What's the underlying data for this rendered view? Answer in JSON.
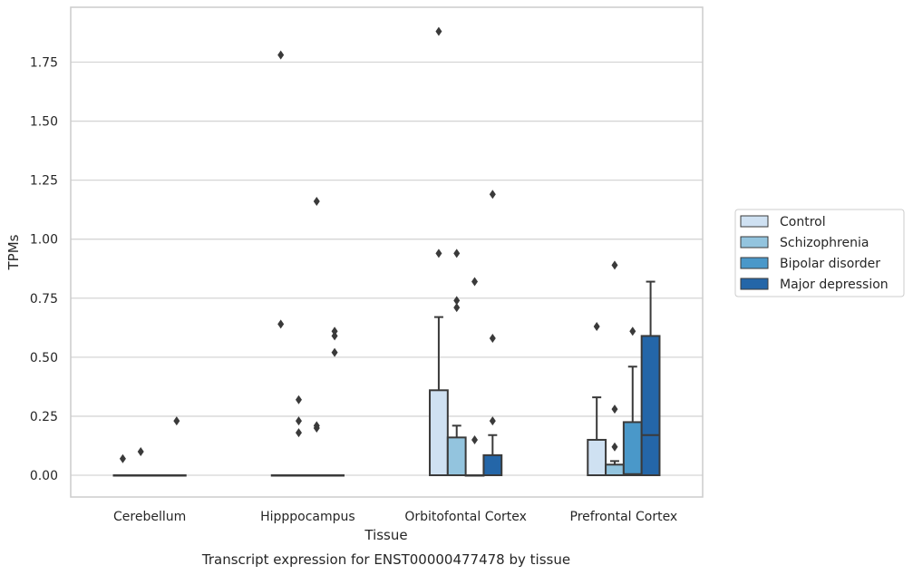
{
  "chart_data": {
    "type": "box",
    "title": "",
    "caption": "Transcript expression for ENST00000477478 by tissue",
    "xlabel": "Tissue",
    "ylabel": "TPMs",
    "ylim": [
      -0.09,
      1.97
    ],
    "yticks": [
      0,
      0.25,
      0.5,
      0.75,
      1.0,
      1.25,
      1.5,
      1.75
    ],
    "ytick_labels": [
      "0.00",
      "0.25",
      "0.50",
      "0.75",
      "1.00",
      "1.25",
      "1.50",
      "1.75"
    ],
    "categories": [
      "Cerebellum",
      "Hipppocampus",
      "Orbitofontal Cortex",
      "Prefrontal Cortex"
    ],
    "grid": "horizontal",
    "legend_position": "right",
    "series": [
      {
        "name": "Control",
        "color": "#cfe1f2",
        "boxes": [
          {
            "q1": 0,
            "median": 0,
            "q3": 0,
            "whisker_low": 0,
            "whisker_high": 0,
            "outliers": [
              0.07
            ]
          },
          {
            "q1": 0,
            "median": 0,
            "q3": 0,
            "whisker_low": 0,
            "whisker_high": 0,
            "outliers": [
              0.64,
              1.78
            ]
          },
          {
            "q1": 0,
            "median": 0,
            "q3": 0.36,
            "whisker_low": 0,
            "whisker_high": 0.67,
            "outliers": [
              0.94,
              1.88
            ]
          },
          {
            "q1": 0,
            "median": 0,
            "q3": 0.15,
            "whisker_low": 0,
            "whisker_high": 0.33,
            "outliers": [
              0.63
            ]
          }
        ]
      },
      {
        "name": "Schizophrenia",
        "color": "#93c4de",
        "boxes": [
          {
            "q1": 0,
            "median": 0,
            "q3": 0,
            "whisker_low": 0,
            "whisker_high": 0,
            "outliers": [
              0.1
            ]
          },
          {
            "q1": 0,
            "median": 0,
            "q3": 0,
            "whisker_low": 0,
            "whisker_high": 0,
            "outliers": [
              0.18,
              0.23,
              0.32
            ]
          },
          {
            "q1": 0,
            "median": 0,
            "q3": 0.16,
            "whisker_low": 0,
            "whisker_high": 0.21,
            "outliers": [
              0.71,
              0.74,
              0.94
            ]
          },
          {
            "q1": 0,
            "median": 0,
            "q3": 0.045,
            "whisker_low": 0,
            "whisker_high": 0.06,
            "outliers": [
              0.12,
              0.28,
              0.89
            ]
          }
        ]
      },
      {
        "name": "Bipolar disorder",
        "color": "#4a98c9",
        "boxes": [
          {
            "q1": 0,
            "median": 0,
            "q3": 0,
            "whisker_low": 0,
            "whisker_high": 0,
            "outliers": []
          },
          {
            "q1": 0,
            "median": 0,
            "q3": 0,
            "whisker_low": 0,
            "whisker_high": 0,
            "outliers": [
              0.2,
              0.21,
              1.16
            ]
          },
          {
            "q1": 0,
            "median": 0,
            "q3": 0,
            "whisker_low": 0,
            "whisker_high": 0,
            "outliers": [
              0.15,
              0.82
            ]
          },
          {
            "q1": 0,
            "median": 0.005,
            "q3": 0.225,
            "whisker_low": 0,
            "whisker_high": 0.46,
            "outliers": [
              0.61
            ]
          }
        ]
      },
      {
        "name": "Major depression",
        "color": "#2466a8",
        "boxes": [
          {
            "q1": 0,
            "median": 0,
            "q3": 0,
            "whisker_low": 0,
            "whisker_high": 0,
            "outliers": [
              0.23
            ]
          },
          {
            "q1": 0,
            "median": 0,
            "q3": 0,
            "whisker_low": 0,
            "whisker_high": 0,
            "outliers": [
              0.52,
              0.59,
              0.61
            ]
          },
          {
            "q1": 0,
            "median": 0,
            "q3": 0.085,
            "whisker_low": 0,
            "whisker_high": 0.17,
            "outliers": [
              0.23,
              0.58,
              1.19
            ]
          },
          {
            "q1": 0,
            "median": 0.17,
            "q3": 0.59,
            "whisker_low": 0,
            "whisker_high": 0.82,
            "outliers": []
          }
        ]
      }
    ]
  }
}
